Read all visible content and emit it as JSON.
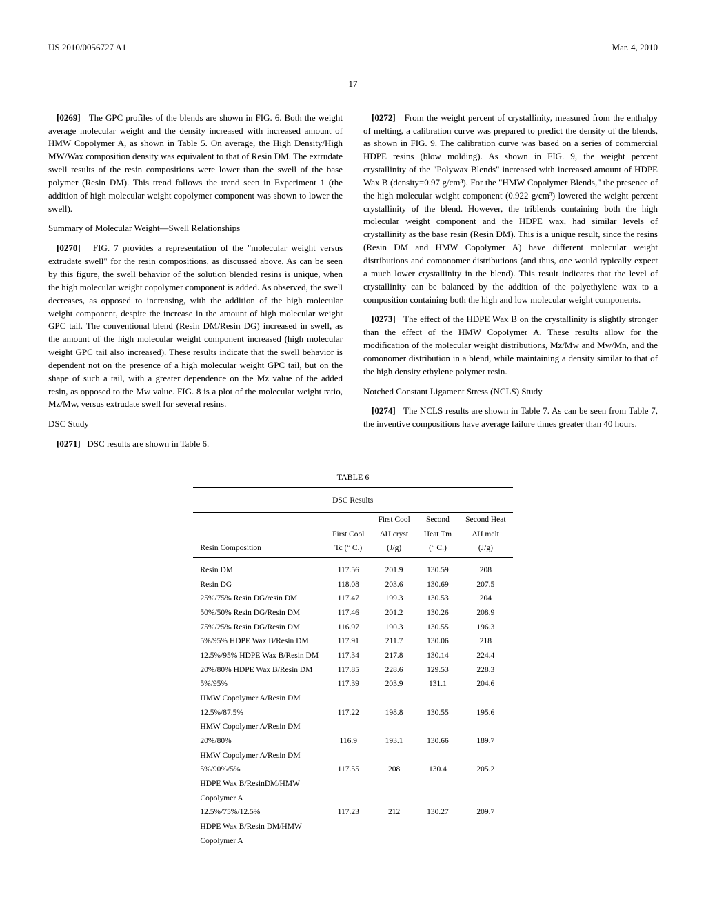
{
  "header": {
    "pub_number": "US 2010/0056727 A1",
    "date": "Mar. 4, 2010"
  },
  "page_number": "17",
  "left_column": {
    "p0269": {
      "label": "[0269]",
      "text": "The GPC profiles of the blends are shown in FIG. 6. Both the weight average molecular weight and the density increased with increased amount of HMW Copolymer A, as shown in Table 5. On average, the High Density/High MW/Wax composition density was equivalent to that of Resin DM. The extrudate swell results of the resin compositions were lower than the swell of the base polymer (Resin DM). This trend follows the trend seen in Experiment 1 (the addition of high molecular weight copolymer component was shown to lower the swell)."
    },
    "heading1": "Summary of Molecular Weight—Swell Relationships",
    "p0270": {
      "label": "[0270]",
      "text": "FIG. 7 provides a representation of the \"molecular weight versus extrudate swell\" for the resin compositions, as discussed above. As can be seen by this figure, the swell behavior of the solution blended resins is unique, when the high molecular weight copolymer component is added. As observed, the swell decreases, as opposed to increasing, with the addition of the high molecular weight component, despite the increase in the amount of high molecular weight GPC tail. The conventional blend (Resin DM/Resin DG) increased in swell, as the amount of the high molecular weight component increased (high molecular weight GPC tail also increased). These results indicate that the swell behavior is dependent not on the presence of a high molecular weight GPC tail, but on the shape of such a tail, with a greater dependence on the Mz value of the added resin, as opposed to the Mw value. FIG. 8 is a plot of the molecular weight ratio, Mz/Mw, versus extrudate swell for several resins."
    },
    "heading2": "DSC Study",
    "p0271": {
      "label": "[0271]",
      "text": "DSC results are shown in Table 6."
    }
  },
  "right_column": {
    "p0272": {
      "label": "[0272]",
      "text": "From the weight percent of crystallinity, measured from the enthalpy of melting, a calibration curve was prepared to predict the density of the blends, as shown in FIG. 9. The calibration curve was based on a series of commercial HDPE resins (blow molding). As shown in FIG. 9, the weight percent crystallinity of the \"Polywax Blends\" increased with increased amount of HDPE Wax B (density=0.97 g/cm³). For the \"HMW Copolymer Blends,\" the presence of the high molecular weight component (0.922 g/cm³) lowered the weight percent crystallinity of the blend. However, the triblends containing both the high molecular weight component and the HDPE wax, had similar levels of crystallinity as the base resin (Resin DM). This is a unique result, since the resins (Resin DM and HMW Copolymer A) have different molecular weight distributions and comonomer distributions (and thus, one would typically expect a much lower crystallinity in the blend). This result indicates that the level of crystallinity can be balanced by the addition of the polyethylene wax to a composition containing both the high and low molecular weight components."
    },
    "p0273": {
      "label": "[0273]",
      "text": "The effect of the HDPE Wax B on the crystallinity is slightly stronger than the effect of the HMW Copolymer A. These results allow for the modification of the molecular weight distributions, Mz/Mw and Mw/Mn, and the comonomer distribution in a blend, while maintaining a density similar to that of the high density ethylene polymer resin."
    },
    "heading3": "Notched Constant Ligament Stress (NCLS) Study",
    "p0274": {
      "label": "[0274]",
      "text": "The NCLS results are shown in Table 7. As can be seen from Table 7, the inventive compositions have average failure times greater than 40 hours."
    }
  },
  "table6": {
    "title": "TABLE 6",
    "subtitle": "DSC Results",
    "headers": {
      "col1": "Resin Composition",
      "col2a": "First Cool",
      "col2b": "Tc (° C.)",
      "col3a": "First Cool",
      "col3b": "ΔH cryst",
      "col3c": "(J/g)",
      "col4a": "Second",
      "col4b": "Heat Tm",
      "col4c": "(° C.)",
      "col5a": "Second Heat",
      "col5b": "ΔH melt",
      "col5c": "(J/g)"
    },
    "rows": [
      {
        "resin": "Resin DM",
        "tc": "117.56",
        "dhc": "201.9",
        "tm": "130.59",
        "dhm": "208"
      },
      {
        "resin": "Resin DG",
        "tc": "118.08",
        "dhc": "203.6",
        "tm": "130.69",
        "dhm": "207.5"
      },
      {
        "resin": "25%/75% Resin DG/resin DM",
        "tc": "117.47",
        "dhc": "199.3",
        "tm": "130.53",
        "dhm": "204"
      },
      {
        "resin": "50%/50% Resin DG/Resin DM",
        "tc": "117.46",
        "dhc": "201.2",
        "tm": "130.26",
        "dhm": "208.9"
      },
      {
        "resin": "75%/25% Resin DG/Resin DM",
        "tc": "116.97",
        "dhc": "190.3",
        "tm": "130.55",
        "dhm": "196.3"
      },
      {
        "resin": "5%/95% HDPE Wax B/Resin DM",
        "tc": "117.91",
        "dhc": "211.7",
        "tm": "130.06",
        "dhm": "218"
      },
      {
        "resin": "12.5%/95% HDPE Wax B/Resin DM",
        "tc": "117.34",
        "dhc": "217.8",
        "tm": "130.14",
        "dhm": "224.4"
      },
      {
        "resin": "20%/80% HDPE Wax B/Resin DM",
        "tc": "117.85",
        "dhc": "228.6",
        "tm": "129.53",
        "dhm": "228.3"
      },
      {
        "resin": "5%/95%",
        "tc": "117.39",
        "dhc": "203.9",
        "tm": "131.1",
        "dhm": "204.6"
      },
      {
        "resin": "HMW Copolymer A/Resin DM",
        "tc": "",
        "dhc": "",
        "tm": "",
        "dhm": ""
      },
      {
        "resin": "12.5%/87.5%",
        "tc": "117.22",
        "dhc": "198.8",
        "tm": "130.55",
        "dhm": "195.6"
      },
      {
        "resin": "HMW Copolymer A/Resin DM",
        "tc": "",
        "dhc": "",
        "tm": "",
        "dhm": ""
      },
      {
        "resin": "20%/80%",
        "tc": "116.9",
        "dhc": "193.1",
        "tm": "130.66",
        "dhm": "189.7"
      },
      {
        "resin": "HMW Copolymer A/Resin DM",
        "tc": "",
        "dhc": "",
        "tm": "",
        "dhm": ""
      },
      {
        "resin": "5%/90%/5%",
        "tc": "117.55",
        "dhc": "208",
        "tm": "130.4",
        "dhm": "205.2"
      },
      {
        "resin": "HDPE Wax B/ResinDM/HMW",
        "tc": "",
        "dhc": "",
        "tm": "",
        "dhm": ""
      },
      {
        "resin": "Copolymer A",
        "tc": "",
        "dhc": "",
        "tm": "",
        "dhm": ""
      },
      {
        "resin": "12.5%/75%/12.5%",
        "tc": "117.23",
        "dhc": "212",
        "tm": "130.27",
        "dhm": "209.7"
      },
      {
        "resin": "HDPE Wax B/Resin DM/HMW",
        "tc": "",
        "dhc": "",
        "tm": "",
        "dhm": ""
      },
      {
        "resin": "Copolymer A",
        "tc": "",
        "dhc": "",
        "tm": "",
        "dhm": ""
      }
    ]
  }
}
